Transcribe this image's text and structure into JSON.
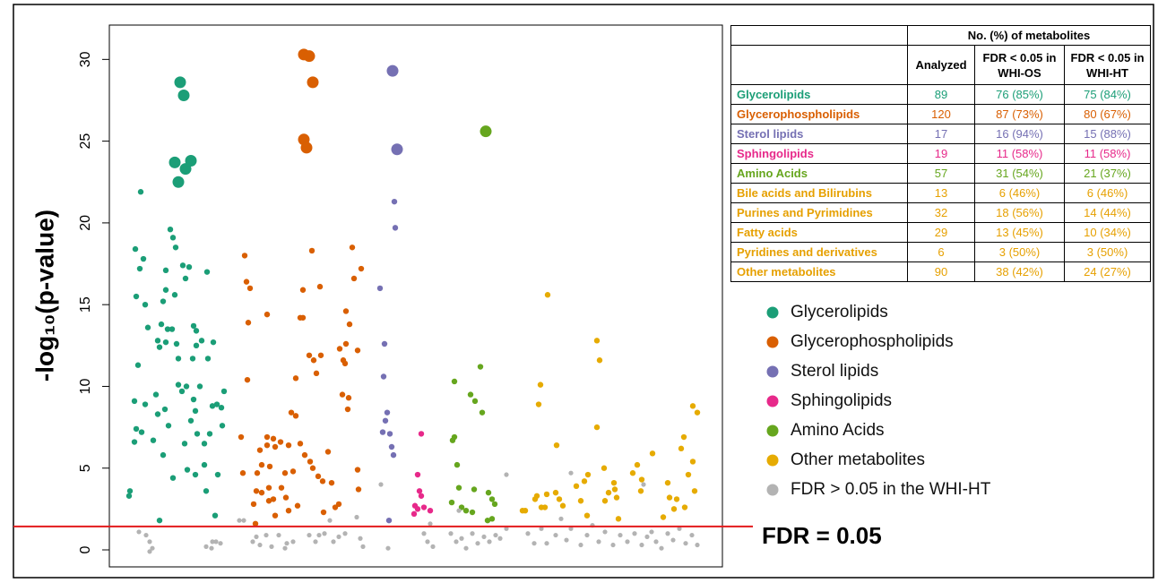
{
  "chart_data": {
    "type": "scatter",
    "ylabel": "-log₁₀(p-value)",
    "xlim": [
      0,
      684
    ],
    "ylim": [
      -1.04,
      32.1
    ],
    "yticks": [
      0,
      5,
      10,
      15,
      20,
      25,
      30
    ],
    "hline": {
      "value": 1.43,
      "label": "FDR = 0.05",
      "color": "#e31a1c"
    },
    "series": [
      {
        "name": "Glycerolipids",
        "color": "#1b9e77",
        "x": [
          79,
          83,
          35,
          73,
          85,
          91,
          77,
          29,
          38,
          34,
          68,
          71,
          74,
          63,
          82,
          89,
          109,
          85,
          30,
          40,
          60,
          63,
          73,
          58,
          65,
          70,
          94,
          97,
          43,
          54,
          56,
          63,
          75,
          97,
          103,
          116,
          32,
          77,
          93,
          110,
          28,
          40,
          52,
          77,
          86,
          81,
          94,
          101,
          128,
          120,
          115,
          125,
          30,
          36,
          49,
          62,
          54,
          66,
          96,
          91,
          98,
          112,
          28,
          60,
          84,
          106,
          126,
          96,
          106,
          121,
          71,
          87,
          22,
          23,
          108,
          118,
          56
        ],
        "values": [
          28.6,
          27.8,
          21.9,
          23.7,
          23.3,
          23.8,
          22.5,
          18.4,
          17.8,
          17.2,
          19.6,
          19.1,
          18.5,
          17.1,
          17.4,
          17.3,
          17.0,
          16.6,
          15.5,
          15.0,
          15.2,
          15.9,
          15.6,
          13.8,
          13.5,
          13.5,
          13.7,
          13.4,
          13.6,
          12.8,
          12.4,
          12.7,
          12.6,
          12.5,
          12.8,
          12.7,
          11.3,
          11.7,
          11.7,
          11.7,
          9.1,
          8.9,
          9.5,
          10.1,
          10.0,
          9.7,
          9.2,
          10.0,
          9.7,
          8.9,
          8.8,
          8.7,
          7.4,
          7.2,
          6.7,
          8.6,
          8.3,
          7.6,
          8.5,
          7.9,
          7.1,
          7.1,
          6.6,
          5.8,
          6.5,
          6.5,
          7.6,
          4.6,
          5.2,
          4.6,
          4.4,
          4.9,
          3.3,
          3.6,
          3.6,
          2.1,
          1.8
        ]
      },
      {
        "name": "Glycerophospholipids",
        "color": "#d95f02",
        "x": [
          217,
          223,
          227,
          217,
          220,
          151,
          226,
          271,
          281,
          153,
          157,
          235,
          216,
          273,
          155,
          176,
          213,
          216,
          264,
          268,
          257,
          264,
          277,
          261,
          263,
          223,
          228,
          236,
          231,
          208,
          154,
          260,
          267,
          266,
          203,
          208,
          147,
          176,
          183,
          191,
          200,
          213,
          185,
          218,
          224,
          176,
          168,
          244,
          149,
          165,
          170,
          179,
          196,
          205,
          227,
          233,
          238,
          248,
          277,
          164,
          170,
          178,
          192,
          178,
          183,
          197,
          200,
          210,
          161,
          185,
          256,
          252,
          239,
          278,
          163
        ],
        "values": [
          30.3,
          30.2,
          28.6,
          25.1,
          24.6,
          18.0,
          18.3,
          18.5,
          17.2,
          16.4,
          16.0,
          16.1,
          15.9,
          16.6,
          13.9,
          14.4,
          14.2,
          14.2,
          14.6,
          13.8,
          12.3,
          12.6,
          12.2,
          11.6,
          11.4,
          11.9,
          11.6,
          11.9,
          10.8,
          10.5,
          10.4,
          9.5,
          9.3,
          8.6,
          8.4,
          8.2,
          6.9,
          6.9,
          6.8,
          6.6,
          6.4,
          6.5,
          6.3,
          5.8,
          5.4,
          6.4,
          6.1,
          6.0,
          4.7,
          4.7,
          5.2,
          5.1,
          4.7,
          4.8,
          5.0,
          4.5,
          4.2,
          4.1,
          4.9,
          3.6,
          3.5,
          3.8,
          3.8,
          3.0,
          3.1,
          3.2,
          2.4,
          2.7,
          2.8,
          2.1,
          2.8,
          2.6,
          2.3,
          3.7,
          1.6
        ]
      },
      {
        "name": "Sterol lipids",
        "color": "#7570b3",
        "x": [
          316,
          321,
          318,
          319,
          302,
          307,
          306,
          310,
          305,
          313,
          308,
          315,
          317,
          312
        ],
        "values": [
          29.3,
          24.5,
          21.3,
          19.7,
          16.0,
          12.6,
          10.6,
          8.4,
          7.2,
          7.1,
          7.9,
          6.3,
          5.8,
          1.8
        ]
      },
      {
        "name": "Sphingolipids",
        "color": "#e7298a",
        "x": [
          348,
          344,
          346,
          348,
          341,
          344,
          351,
          358,
          340
        ],
        "values": [
          7.1,
          4.6,
          3.6,
          3.3,
          2.7,
          2.5,
          2.6,
          2.4,
          2.2
        ]
      },
      {
        "name": "Amino Acids",
        "color": "#66a61e",
        "x": [
          420,
          414,
          385,
          403,
          408,
          416,
          385,
          383,
          388,
          390,
          407,
          423,
          382,
          393,
          398,
          405,
          427,
          430,
          427,
          422
        ],
        "values": [
          25.6,
          11.2,
          10.3,
          9.5,
          9.1,
          8.4,
          6.9,
          6.7,
          5.2,
          3.8,
          3.7,
          3.5,
          2.9,
          2.6,
          2.4,
          2.3,
          3.1,
          2.8,
          1.9,
          1.8
        ]
      },
      {
        "name": "Other metabolites",
        "color": "#e6ab02",
        "x": [
          489,
          544,
          547,
          481,
          479,
          544,
          651,
          656,
          641,
          638,
          651,
          653,
          646,
          499,
          477,
          475,
          482,
          486,
          488,
          498,
          502,
          506,
          521,
          530,
          534,
          526,
          533,
          552,
          563,
          553,
          564,
          566,
          557,
          584,
          589,
          594,
          593,
          606,
          623,
          625,
          633,
          630,
          642,
          618,
          568,
          461,
          464
        ],
        "values": [
          15.6,
          12.8,
          11.6,
          10.1,
          8.9,
          7.5,
          8.8,
          8.4,
          6.9,
          6.2,
          5.4,
          3.6,
          4.6,
          6.4,
          3.3,
          3.1,
          2.6,
          2.6,
          3.4,
          3.5,
          3.1,
          2.7,
          3.9,
          4.2,
          4.6,
          3.0,
          2.1,
          5.0,
          4.1,
          3.0,
          3.7,
          3.2,
          3.5,
          4.7,
          5.2,
          4.3,
          3.6,
          5.9,
          4.1,
          3.2,
          3.1,
          2.5,
          2.6,
          2.0,
          1.9,
          2.4,
          2.4
        ]
      },
      {
        "name": "FDR > 0.05 in the WHI-HT",
        "color": "#b3b3b3",
        "x": [
          33,
          41,
          45,
          48,
          45,
          108,
          115,
          119,
          124,
          114,
          145,
          150,
          160,
          164,
          168,
          175,
          181,
          189,
          198,
          205,
          196,
          223,
          230,
          234,
          240,
          246,
          250,
          256,
          263,
          276,
          280,
          283,
          303,
          311,
          351,
          355,
          361,
          358,
          381,
          387,
          393,
          398,
          405,
          411,
          418,
          424,
          431,
          436,
          443,
          443,
          467,
          474,
          482,
          488,
          498,
          504,
          510,
          515,
          515,
          526,
          533,
          539,
          546,
          553,
          562,
          570,
          578,
          586,
          594,
          600,
          605,
          610,
          616,
          623,
          629,
          636,
          643,
          650,
          656,
          596,
          390
        ],
        "values": [
          1.1,
          0.9,
          0.5,
          0.1,
          -0.1,
          0.2,
          0.5,
          0.5,
          0.4,
          0.1,
          1.8,
          1.8,
          0.5,
          0.8,
          0.3,
          0.9,
          0.2,
          0.9,
          0.4,
          0.5,
          0.1,
          0.9,
          0.5,
          0.9,
          1.0,
          1.8,
          0.5,
          0.8,
          1.0,
          2.0,
          0.7,
          0.2,
          4.0,
          0.1,
          1.0,
          0.5,
          0.2,
          1.6,
          1.0,
          0.5,
          0.7,
          0.1,
          1.0,
          0.4,
          0.8,
          0.5,
          0.9,
          0.7,
          4.6,
          1.3,
          1.0,
          0.4,
          1.3,
          0.4,
          0.9,
          1.9,
          0.6,
          1.3,
          4.7,
          0.3,
          0.9,
          1.5,
          0.5,
          1.1,
          0.3,
          0.9,
          0.5,
          1.0,
          0.3,
          0.8,
          1.1,
          0.5,
          0.1,
          1.0,
          0.6,
          1.3,
          0.4,
          0.9,
          0.3,
          4.0,
          2.4
        ]
      }
    ]
  },
  "table": {
    "group_header": "No. (%) of metabolites",
    "columns": [
      "Analyzed",
      "FDR < 0.05 in WHI-OS",
      "FDR < 0.05 in WHI-HT"
    ],
    "rows": [
      {
        "name": "Glycerolipids",
        "color": "#1b9e77",
        "analyzed": 89,
        "os": "76 (85%)",
        "ht": "75 (84%)"
      },
      {
        "name": "Glycerophospholipids",
        "color": "#d95f02",
        "analyzed": 120,
        "os": "87 (73%)",
        "ht": "80 (67%)"
      },
      {
        "name": "Sterol lipids",
        "color": "#7570b3",
        "analyzed": 17,
        "os": "16 (94%)",
        "ht": "15 (88%)"
      },
      {
        "name": "Sphingolipids",
        "color": "#e7298a",
        "analyzed": 19,
        "os": "11 (58%)",
        "ht": "11 (58%)"
      },
      {
        "name": "Amino Acids",
        "color": "#66a61e",
        "analyzed": 57,
        "os": "31 (54%)",
        "ht": "21 (37%)"
      },
      {
        "name": "Bile acids and Bilirubins",
        "color": "#e6a000",
        "analyzed": 13,
        "os": "6 (46%)",
        "ht": "6 (46%)"
      },
      {
        "name": "Purines and Pyrimidines",
        "color": "#e6a000",
        "analyzed": 32,
        "os": "18 (56%)",
        "ht": "14 (44%)"
      },
      {
        "name": "Fatty acids",
        "color": "#e6a000",
        "analyzed": 29,
        "os": "13 (45%)",
        "ht": "10 (34%)"
      },
      {
        "name": "Pyridines and derivatives",
        "color": "#e6a000",
        "analyzed": 6,
        "os": "3 (50%)",
        "ht": "3 (50%)"
      },
      {
        "name": "Other metabolites",
        "color": "#e6a000",
        "analyzed": 90,
        "os": "38 (42%)",
        "ht": "24 (27%)"
      }
    ]
  }
}
